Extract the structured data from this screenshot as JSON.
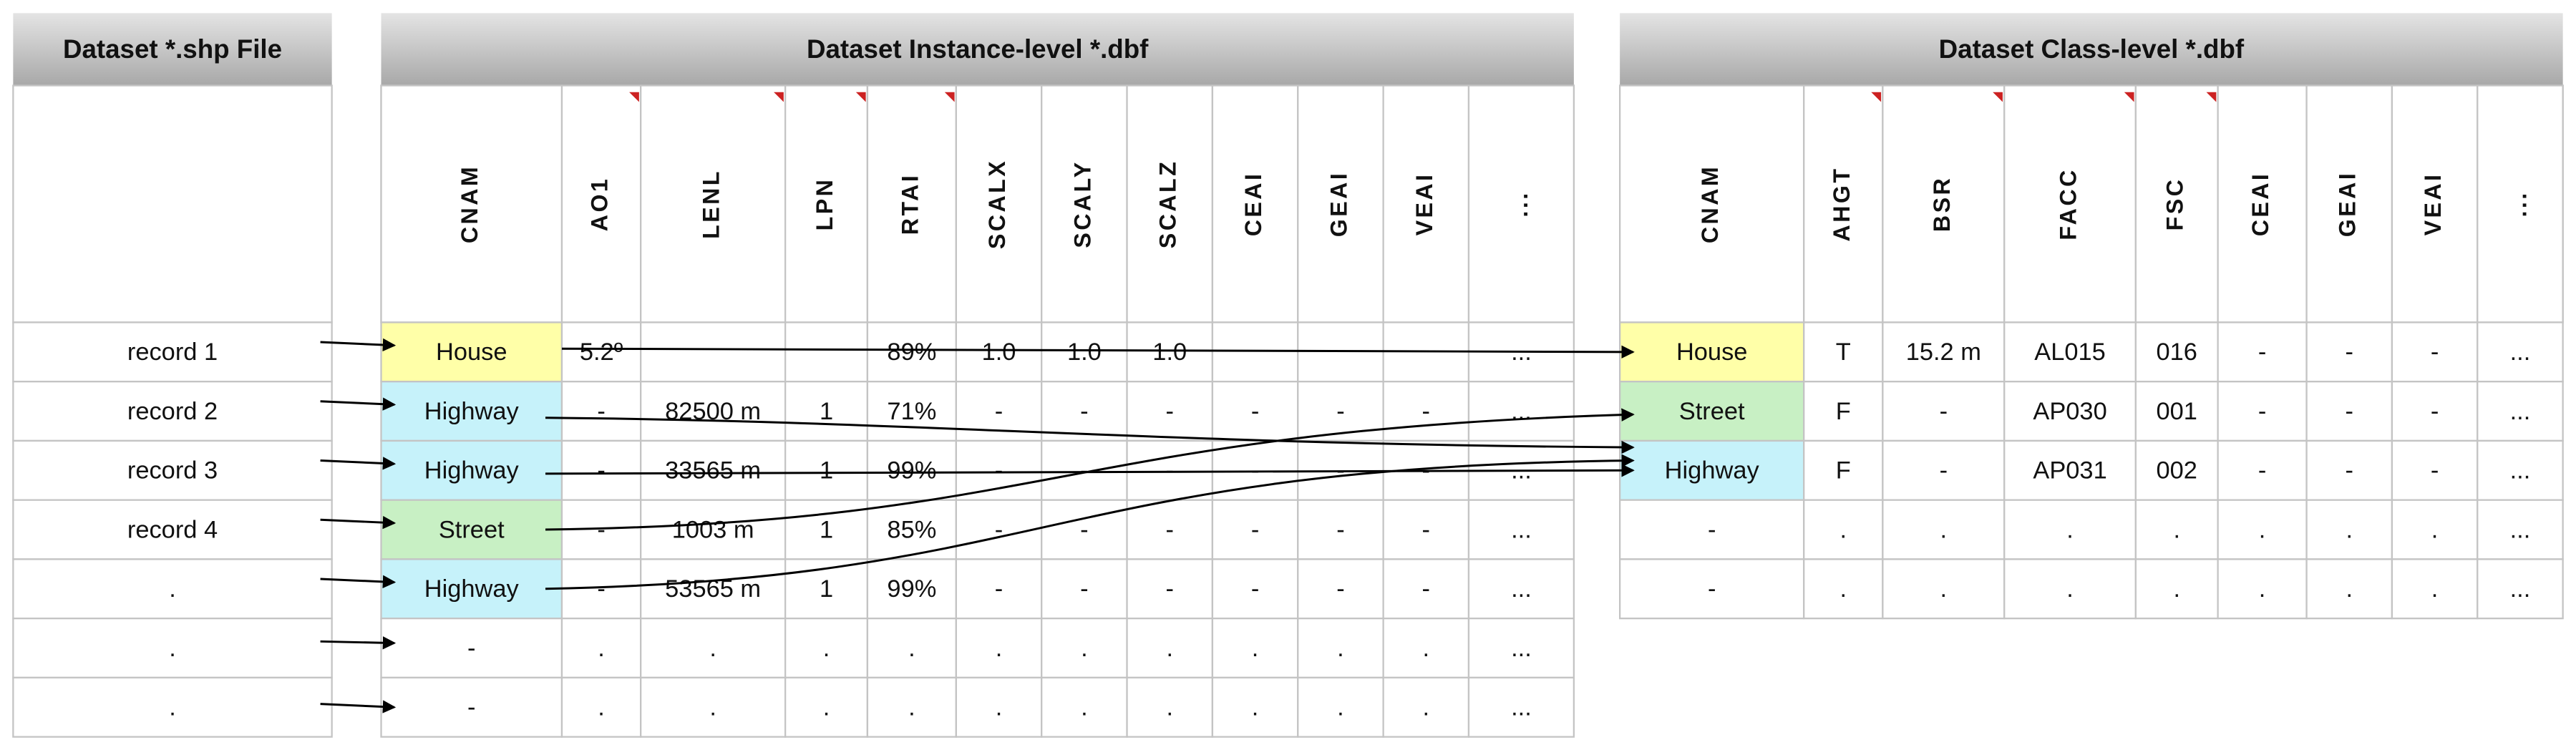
{
  "shp_file": {
    "title": "Dataset *.shp File",
    "rows": [
      [
        "record 1"
      ],
      [
        "record 2"
      ],
      [
        "record 3"
      ],
      [
        "record 4"
      ],
      [
        "."
      ],
      [
        "."
      ],
      [
        "."
      ]
    ]
  },
  "instance_dbf": {
    "title": "Dataset Instance-level *.dbf",
    "columns": [
      "CNAM",
      "AO1",
      "LENL",
      "LPN",
      "RTAI",
      "SCALX",
      "SCALY",
      "SCALZ",
      "CEAI",
      "GEAI",
      "VEAI",
      "..."
    ],
    "rows": [
      [
        "House",
        "5.2º",
        null,
        null,
        "89%",
        "1.0",
        "1.0",
        "1.0",
        null,
        null,
        null,
        "..."
      ],
      [
        "Highway",
        "-",
        "82500 m",
        "1",
        "71%",
        "-",
        "-",
        "-",
        "-",
        "-",
        "-",
        "..."
      ],
      [
        "Highway",
        "-",
        "33565 m",
        "1",
        "99%",
        "-",
        "-",
        "-",
        "-",
        "-",
        "-",
        "..."
      ],
      [
        "Street",
        "-",
        "1003 m",
        "1",
        "85%",
        "-",
        "-",
        "-",
        "-",
        "-",
        "-",
        "..."
      ],
      [
        "Highway",
        "-",
        "53565 m",
        "1",
        "99%",
        "-",
        "-",
        "-",
        "-",
        "-",
        "-",
        "..."
      ],
      [
        "-",
        ".",
        ".",
        ".",
        ".",
        ".",
        ".",
        ".",
        ".",
        ".",
        ".",
        "..."
      ],
      [
        "-",
        ".",
        ".",
        ".",
        ".",
        ".",
        ".",
        ".",
        ".",
        ".",
        ".",
        "..."
      ]
    ]
  },
  "class_dbf": {
    "title": "Dataset Class-level *.dbf",
    "columns": [
      "CNAM",
      "AHGT",
      "BSR",
      "FACC",
      "FSC",
      "CEAI",
      "GEAI",
      "VEAI",
      "..."
    ],
    "rows": [
      [
        "House",
        "T",
        "15.2 m",
        "AL015",
        "016",
        "-",
        "-",
        "-",
        "..."
      ],
      [
        "Street",
        "F",
        "-",
        "AP030",
        "001",
        "-",
        "-",
        "-",
        "..."
      ],
      [
        "Highway",
        "F",
        "-",
        "AP031",
        "002",
        "-",
        "-",
        "-",
        "..."
      ],
      [
        "-",
        ".",
        ".",
        ".",
        ".",
        ".",
        ".",
        ".",
        "..."
      ],
      [
        "-",
        ".",
        ".",
        ".",
        ".",
        ".",
        ".",
        ".",
        "..."
      ]
    ]
  }
}
